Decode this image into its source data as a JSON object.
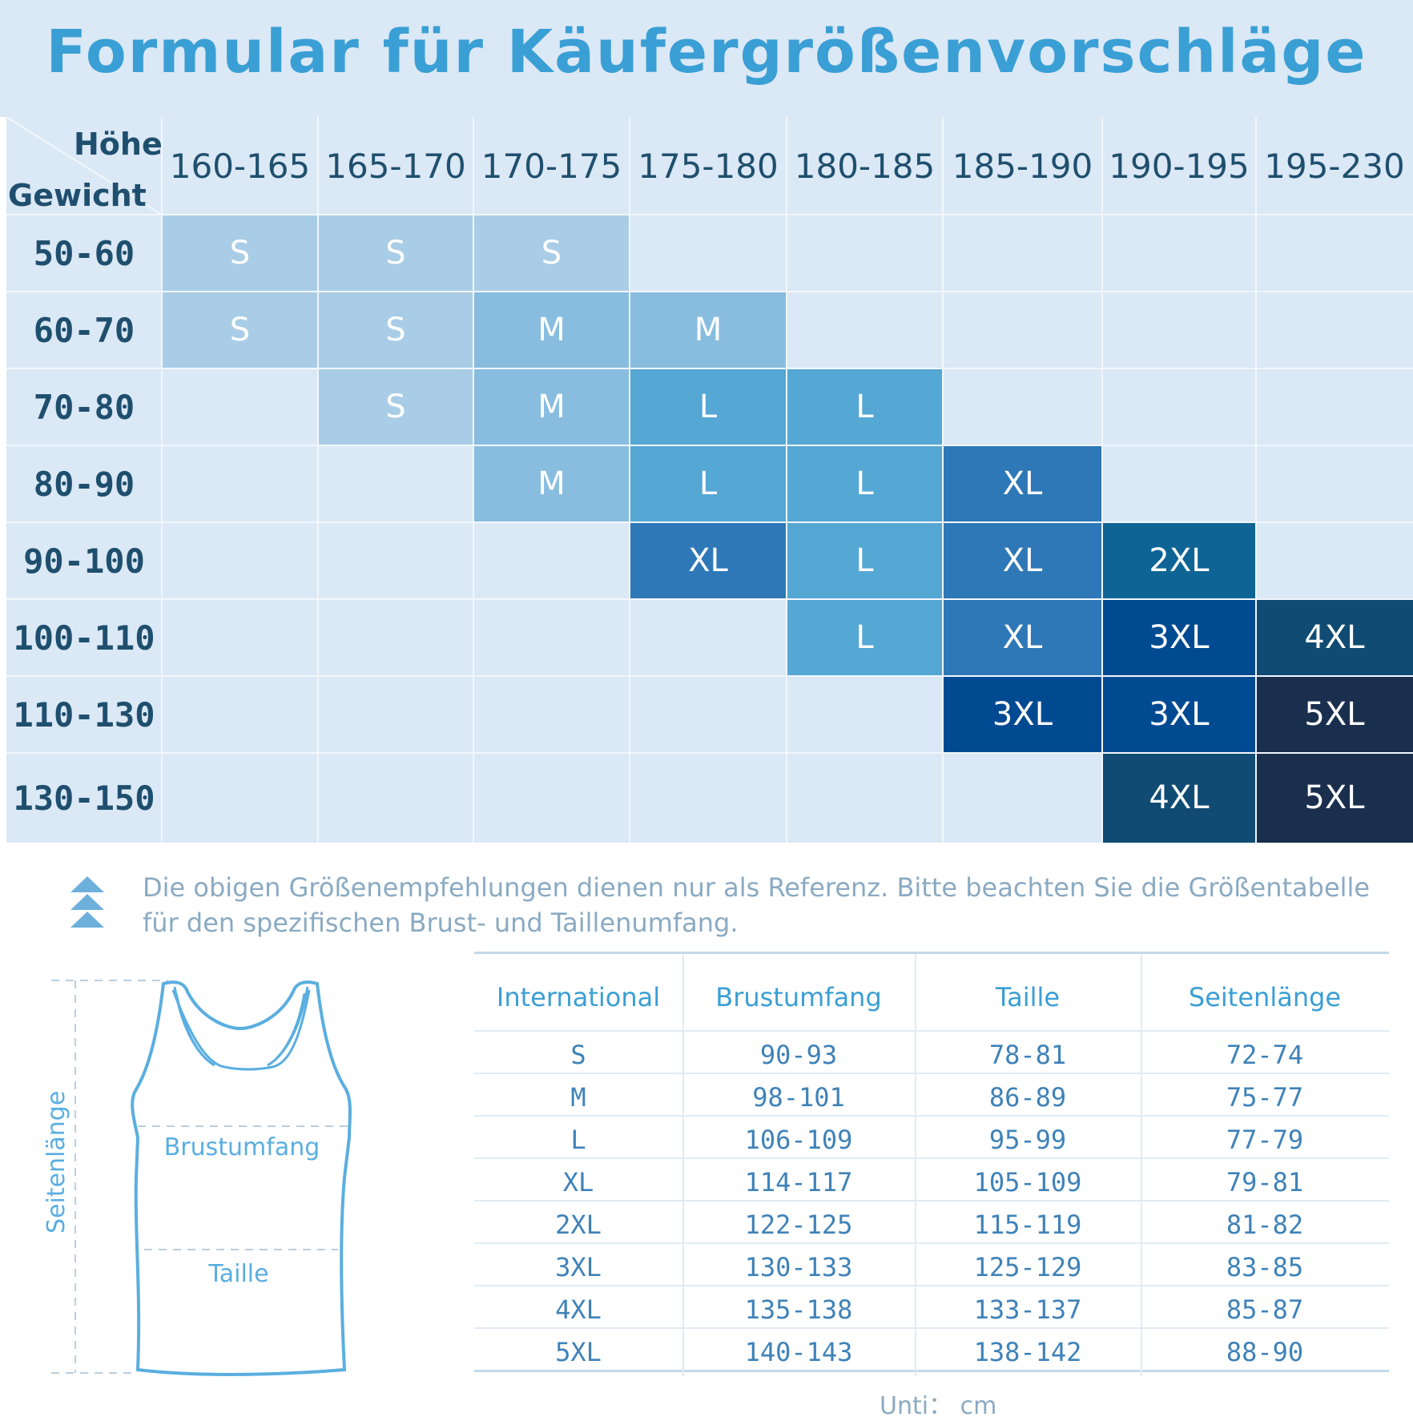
{
  "title": "Formular für Käufergrößenvorschläge",
  "grid": {
    "corner_height_label": "Höhe",
    "corner_weight_label": "Gewicht",
    "heights": [
      "160-165",
      "165-170",
      "170-175",
      "175-180",
      "180-185",
      "185-190",
      "190-195",
      "195-230"
    ],
    "weights": [
      "50-60",
      "60-70",
      "70-80",
      "80-90",
      "90-100",
      "100-110",
      "110-130",
      "130-150"
    ],
    "sizes": [
      [
        "S",
        "S",
        "S",
        "",
        "",
        "",
        "",
        ""
      ],
      [
        "S",
        "S",
        "M",
        "M",
        "",
        "",
        "",
        ""
      ],
      [
        "",
        "S",
        "M",
        "L",
        "L",
        "",
        "",
        ""
      ],
      [
        "",
        "",
        "M",
        "L",
        "L",
        "XL",
        "",
        ""
      ],
      [
        "",
        "",
        "",
        "XL",
        "L",
        "XL",
        "2XL",
        ""
      ],
      [
        "",
        "",
        "",
        "",
        "L",
        "XL",
        "3XL",
        "4XL"
      ],
      [
        "",
        "",
        "",
        "",
        "",
        "3XL",
        "3XL",
        "5XL"
      ],
      [
        "",
        "",
        "",
        "",
        "",
        "",
        "4XL",
        "5XL"
      ]
    ],
    "size_colors": {
      "S": "#a9cde6",
      "M": "#88bde0",
      "L": "#55a7d4",
      "XL": "#2e78b7",
      "2XL": "#0e6495",
      "3XL": "#004a92",
      "4XL": "#104b73",
      "5XL": "#1a2e4d"
    }
  },
  "note": {
    "icon": "triple-chevron-up-icon",
    "text": "Die obigen Größenempfehlungen dienen nur als Referenz. Bitte beachten Sie die Größentabelle für den spezifischen Brust- und Taillenumfang."
  },
  "garment": {
    "icon": "tank-top-icon",
    "side_length_label": "Seitenlänge",
    "chest_label": "Brustumfang",
    "waist_label": "Taille"
  },
  "size_table": {
    "headers": [
      "International",
      "Brustumfang",
      "Taille",
      "Seitenlänge"
    ],
    "rows": [
      [
        "S",
        "90-93",
        "78-81",
        "72-74"
      ],
      [
        "M",
        "98-101",
        "86-89",
        "75-77"
      ],
      [
        "L",
        "106-109",
        "95-99",
        "77-79"
      ],
      [
        "XL",
        "114-117",
        "105-109",
        "79-81"
      ],
      [
        "2XL",
        "122-125",
        "115-119",
        "81-82"
      ],
      [
        "3XL",
        "130-133",
        "125-129",
        "83-85"
      ],
      [
        "4XL",
        "135-138",
        "133-137",
        "85-87"
      ],
      [
        "5XL",
        "140-143",
        "138-142",
        "88-90"
      ]
    ],
    "unit": "Unti： cm"
  },
  "colors": {
    "title": "#3a9fd4",
    "grid_background": "#dbe8f5",
    "table_text": "#3f82b8",
    "note_text": "#8aaac2"
  }
}
